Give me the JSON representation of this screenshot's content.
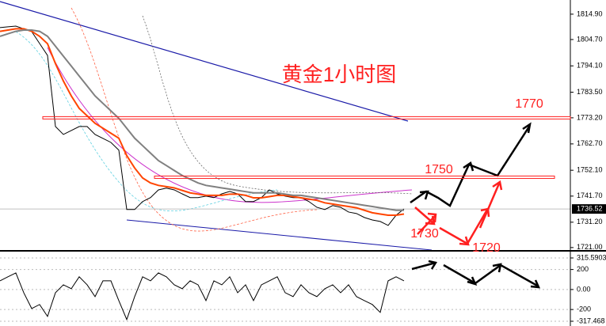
{
  "chart_data": [
    {
      "type": "line",
      "title": "黄金1小时图",
      "x": [
        0,
        1,
        2,
        3,
        4,
        5,
        6,
        7,
        8,
        9,
        10,
        11,
        12,
        13,
        14,
        15,
        16,
        17,
        18,
        19,
        20,
        21,
        22,
        23,
        24,
        25,
        26,
        27,
        28,
        29,
        30,
        31,
        32,
        33,
        34,
        35,
        36,
        37,
        38,
        39,
        40,
        41,
        42,
        43,
        44,
        45,
        46,
        47,
        48,
        49,
        50,
        51
      ],
      "xlim": [
        0,
        72
      ],
      "series": [
        {
          "color": "#000000",
          "values": [
            1809.5,
            1809.8,
            1810.1,
            1809.0,
            1807.9,
            1803.1,
            1798.3,
            1769.7,
            1766.5,
            1768.1,
            1769.7,
            1769.7,
            1766.5,
            1764.9,
            1763.3,
            1760.2,
            1736.3,
            1736.3,
            1739.5,
            1741.1,
            1744.2,
            1744.9,
            1744.2,
            1742.6,
            1741.1,
            1741.1,
            1741.7,
            1741.1,
            1742.6,
            1743.6,
            1742.6,
            1739.5,
            1739.5,
            1741.1,
            1744.2,
            1742.6,
            1741.7,
            1741.1,
            1741.1,
            1739.5,
            1737.2,
            1736.3,
            1737.9,
            1737.2,
            1735.3,
            1734.7,
            1733.1,
            1732.1,
            1731.5,
            1729.9,
            1734.0,
            1736.52
          ]
        },
        {
          "color": "#ff4500",
          "values": [
            1808,
            1808.5,
            1809,
            1809,
            1808,
            1806,
            1803,
            1795,
            1788,
            1782,
            1777,
            1774,
            1771,
            1769,
            1767,
            1765,
            1758,
            1753,
            1749,
            1747,
            1746,
            1745.5,
            1745,
            1744,
            1743,
            1742.5,
            1742,
            1742,
            1742,
            1742.5,
            1742.5,
            1742,
            1741,
            1741,
            1741.5,
            1742,
            1742,
            1741.5,
            1741,
            1740.5,
            1740,
            1739,
            1738.5,
            1738,
            1737.5,
            1737,
            1736,
            1735,
            1734.5,
            1734,
            1734,
            1734.5
          ]
        },
        {
          "color": "#808080",
          "values": [
            1806,
            1807,
            1808,
            1808.5,
            1808.5,
            1808,
            1806,
            1802,
            1798,
            1794,
            1790,
            1786,
            1782,
            1779,
            1776,
            1773,
            1769,
            1765,
            1762,
            1759,
            1756,
            1754,
            1752,
            1750,
            1748.5,
            1747,
            1746,
            1745.5,
            1745,
            1744.5,
            1744,
            1743.5,
            1743,
            1743,
            1743,
            1743,
            1742.5,
            1742,
            1742,
            1741.5,
            1741,
            1740.5,
            1740,
            1739.5,
            1739,
            1738.5,
            1738,
            1737.5,
            1737,
            1736.5,
            1736,
            1736
          ]
        }
      ],
      "ylim": [
        1720.0,
        1820.6
      ],
      "yticks": [
        {
          "value": 1814.9,
          "label": "1814.90"
        },
        {
          "value": 1804.7,
          "label": "1804.70"
        },
        {
          "value": 1794.1,
          "label": "1794.10"
        },
        {
          "value": 1783.5,
          "label": "1783.50"
        },
        {
          "value": 1773.2,
          "label": "1773.20"
        },
        {
          "value": 1762.7,
          "label": "1762.70"
        },
        {
          "value": 1752.1,
          "label": "1752.10"
        },
        {
          "value": 1741.7,
          "label": "1741.70"
        },
        {
          "value": 1731.2,
          "label": "1731.20"
        },
        {
          "value": 1721.0,
          "label": "1721.00"
        }
      ],
      "levels": [
        1773.2,
        1749.3
      ],
      "last_price": 1736.52,
      "annotations": [
        "1770",
        "1750",
        "1730",
        "1720"
      ]
    },
    {
      "type": "line",
      "x": [
        0,
        1,
        2,
        3,
        4,
        5,
        6,
        7,
        8,
        9,
        10,
        11,
        12,
        13,
        14,
        15,
        16,
        17,
        18,
        19,
        20,
        21,
        22,
        23,
        24,
        25,
        26,
        27,
        28,
        29,
        30,
        31,
        32,
        33,
        34,
        35,
        36,
        37,
        38,
        39,
        40,
        41,
        42,
        43,
        44,
        45,
        46,
        47,
        48,
        49,
        50,
        51
      ],
      "xlim": [
        0,
        72
      ],
      "series": [
        {
          "color": "#000000",
          "values": [
            87,
            127,
            166,
            -32,
            -190,
            -150,
            -269,
            -32,
            47,
            8,
            127,
            47,
            -71,
            87,
            87,
            -111,
            -300,
            -71,
            127,
            87,
            166,
            127,
            47,
            8,
            87,
            47,
            -111,
            87,
            47,
            127,
            -32,
            47,
            -111,
            47,
            87,
            127,
            -32,
            -71,
            47,
            -32,
            -71,
            8,
            47,
            -32,
            47,
            -71,
            -111,
            -150,
            -229,
            87,
            127,
            87
          ]
        }
      ],
      "ylim": [
        -317.468,
        315.5903
      ],
      "yticks": [
        315.5903,
        200,
        {
          "value": 0,
          "label": "0.00"
        },
        -200,
        -317.468
      ]
    }
  ]
}
